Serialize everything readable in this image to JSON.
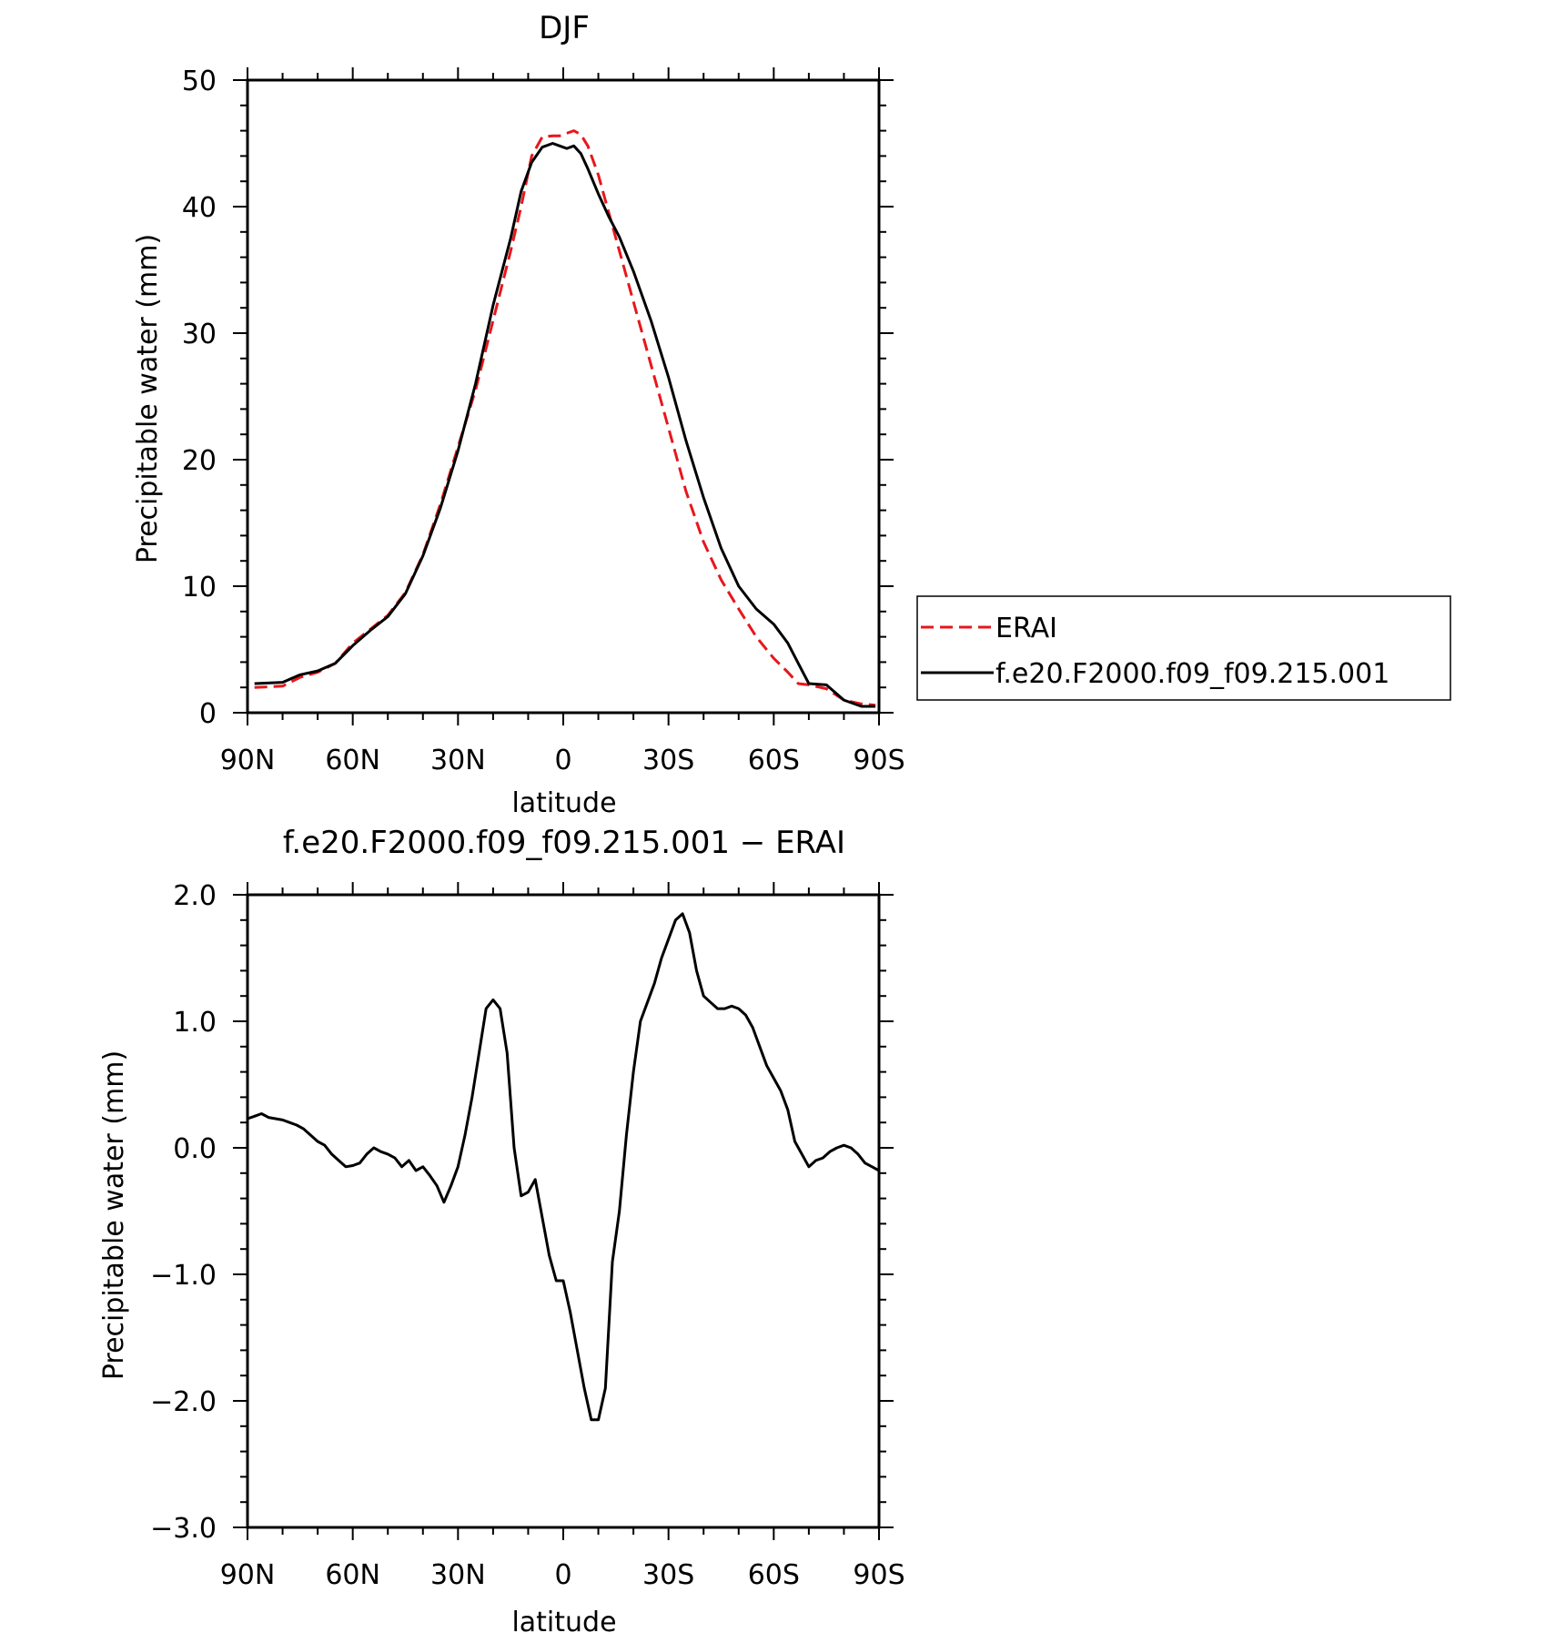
{
  "chart_data": [
    {
      "type": "line",
      "title": "DJF",
      "xlabel": "latitude",
      "ylabel": "Precipitable water (mm)",
      "xlim": [
        90,
        -90
      ],
      "ylim": [
        0,
        50
      ],
      "x_ticks": [
        90,
        60,
        30,
        0,
        -30,
        -60,
        -90
      ],
      "x_tick_labels": [
        "90N",
        "60N",
        "30N",
        "0",
        "30S",
        "60S",
        "90S"
      ],
      "y_ticks": [
        0,
        10,
        20,
        30,
        40,
        50
      ],
      "y_tick_labels": [
        "0",
        "10",
        "20",
        "30",
        "40",
        "50"
      ],
      "legend_position": "right",
      "series": [
        {
          "name": "ERAI",
          "color": "#e8161b",
          "dash": "dashed",
          "x": [
            88,
            80,
            75,
            70,
            65,
            60,
            55,
            50,
            45,
            40,
            35,
            30,
            25,
            20,
            15,
            12,
            9,
            6,
            3,
            1,
            -1,
            -3,
            -5,
            -7,
            -10,
            -13,
            -16,
            -20,
            -25,
            -30,
            -35,
            -40,
            -45,
            -50,
            -55,
            -60,
            -64,
            -67,
            -70,
            -75,
            -80,
            -85,
            -89
          ],
          "y": [
            2.0,
            2.1,
            2.8,
            3.2,
            3.9,
            5.5,
            6.6,
            7.7,
            9.5,
            12.5,
            16.5,
            21.0,
            25.5,
            31.0,
            36.5,
            40.0,
            44.0,
            45.5,
            45.6,
            45.6,
            45.8,
            46.0,
            45.7,
            44.8,
            42.5,
            39.5,
            36.5,
            32.5,
            27.5,
            22.5,
            17.5,
            13.5,
            10.5,
            8.2,
            6.0,
            4.3,
            3.2,
            2.3,
            2.2,
            1.9,
            1.0,
            0.7,
            0.6
          ]
        },
        {
          "name": "f.e20.F2000.f09_f09.215.001",
          "color": "#000000",
          "dash": "solid",
          "x": [
            88,
            80,
            75,
            70,
            65,
            60,
            55,
            50,
            45,
            40,
            35,
            30,
            25,
            20,
            15,
            12,
            9,
            6,
            3,
            1,
            -1,
            -3,
            -5,
            -7,
            -10,
            -13,
            -16,
            -20,
            -25,
            -30,
            -35,
            -40,
            -45,
            -50,
            -55,
            -60,
            -64,
            -67,
            -70,
            -75,
            -80,
            -85,
            -89
          ],
          "y": [
            2.3,
            2.4,
            3.0,
            3.3,
            3.9,
            5.3,
            6.5,
            7.6,
            9.4,
            12.4,
            16.2,
            20.7,
            26.0,
            32.2,
            37.5,
            41.2,
            43.5,
            44.7,
            45.0,
            44.8,
            44.6,
            44.8,
            44.2,
            43.0,
            41.0,
            39.2,
            37.6,
            34.9,
            31.0,
            26.5,
            21.5,
            17.0,
            13.0,
            10.0,
            8.2,
            7.0,
            5.5,
            3.9,
            2.3,
            2.2,
            1.0,
            0.5,
            0.5
          ]
        }
      ]
    },
    {
      "type": "line",
      "title": "f.e20.F2000.f09_f09.215.001 − ERAI",
      "xlabel": "latitude",
      "ylabel": "Precipitable water (mm)",
      "xlim": [
        90,
        -90
      ],
      "ylim": [
        -3.0,
        2.0
      ],
      "x_ticks": [
        90,
        60,
        30,
        0,
        -30,
        -60,
        -90
      ],
      "x_tick_labels": [
        "90N",
        "60N",
        "30N",
        "0",
        "30S",
        "60S",
        "90S"
      ],
      "y_ticks": [
        -3.0,
        -2.0,
        -1.0,
        0.0,
        1.0,
        2.0
      ],
      "y_tick_labels": [
        "−3.0",
        "−2.0",
        "−1.0",
        "0.0",
        "1.0",
        "2.0"
      ],
      "series": [
        {
          "color": "#000000",
          "dash": "solid",
          "x": [
            90,
            88,
            86,
            84,
            82,
            80,
            78,
            76,
            74,
            72,
            70,
            68,
            66,
            64,
            62,
            60,
            58,
            56,
            54,
            52,
            50,
            48,
            46,
            44,
            42,
            40,
            38,
            36,
            34,
            32,
            30,
            28,
            26,
            24,
            22,
            20,
            18,
            16,
            14,
            12,
            10,
            8,
            6,
            4,
            2,
            0,
            -2,
            -4,
            -6,
            -8,
            -10,
            -12,
            -14,
            -16,
            -18,
            -20,
            -22,
            -24,
            -26,
            -28,
            -30,
            -32,
            -34,
            -36,
            -38,
            -40,
            -42,
            -44,
            -46,
            -48,
            -50,
            -52,
            -54,
            -56,
            -58,
            -60,
            -62,
            -64,
            -66,
            -68,
            -70,
            -72,
            -74,
            -76,
            -78,
            -80,
            -82,
            -84,
            -86,
            -88,
            -90
          ],
          "y": [
            0.23,
            0.25,
            0.27,
            0.24,
            0.23,
            0.22,
            0.2,
            0.18,
            0.15,
            0.1,
            0.05,
            0.02,
            -0.05,
            -0.1,
            -0.15,
            -0.14,
            -0.12,
            -0.05,
            0.0,
            -0.03,
            -0.05,
            -0.08,
            -0.15,
            -0.1,
            -0.18,
            -0.15,
            -0.22,
            -0.3,
            -0.43,
            -0.3,
            -0.15,
            0.1,
            0.4,
            0.75,
            1.1,
            1.17,
            1.1,
            0.75,
            0.0,
            -0.38,
            -0.35,
            -0.25,
            -0.55,
            -0.85,
            -1.05,
            -1.05,
            -1.3,
            -1.6,
            -1.9,
            -2.15,
            -2.15,
            -1.9,
            -0.9,
            -0.5,
            0.1,
            0.6,
            1.0,
            1.15,
            1.3,
            1.5,
            1.65,
            1.8,
            1.85,
            1.7,
            1.4,
            1.2,
            1.15,
            1.1,
            1.1,
            1.12,
            1.1,
            1.05,
            0.95,
            0.8,
            0.65,
            0.55,
            0.45,
            0.3,
            0.05,
            -0.05,
            -0.15,
            -0.1,
            -0.08,
            -0.03,
            0.0,
            0.02,
            0.0,
            -0.05,
            -0.12,
            -0.15,
            -0.18
          ]
        }
      ]
    }
  ]
}
